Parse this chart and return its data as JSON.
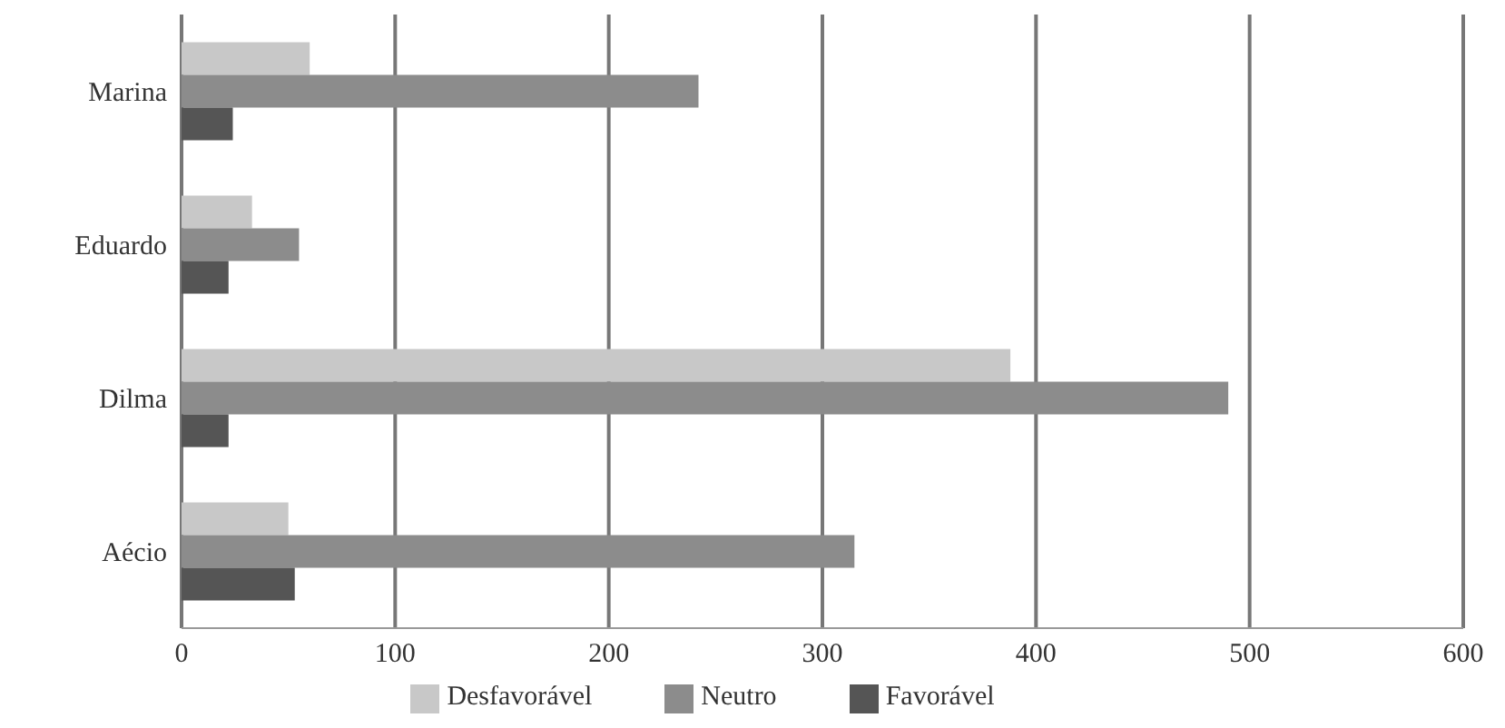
{
  "chart_data": {
    "type": "bar",
    "orientation": "horizontal",
    "categories": [
      "Marina",
      "Eduardo",
      "Dilma",
      "Aécio"
    ],
    "series": [
      {
        "name": "Desfavorável",
        "color": "#c8c8c8",
        "values": [
          60,
          33,
          388,
          50
        ]
      },
      {
        "name": "Neutro",
        "color": "#8c8c8c",
        "values": [
          242,
          55,
          490,
          315
        ]
      },
      {
        "name": "Favorável",
        "color": "#555555",
        "values": [
          24,
          22,
          22,
          53
        ]
      }
    ],
    "xlim": [
      0,
      600
    ],
    "xticks": [
      0,
      100,
      200,
      300,
      400,
      500,
      600
    ],
    "grid": "x",
    "legend": "bottom"
  }
}
